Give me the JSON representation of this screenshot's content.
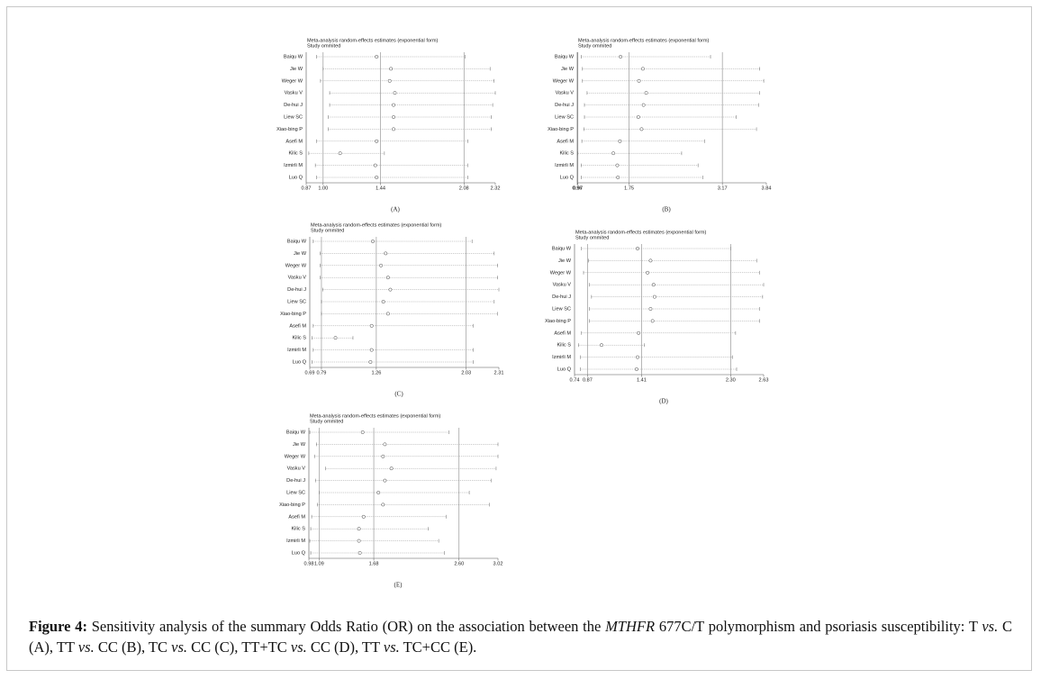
{
  "chart_data": [
    {
      "type": "forest",
      "panel_label": "(A)",
      "title": "Meta-analysis random-effects estimates (exponential form)",
      "subtitle": "Study ommited",
      "categories": [
        "Baiqu W",
        "Jie W",
        "Weger W",
        "Vasku V",
        "De-hui J",
        "Liew SC",
        "Xiao-bing P",
        "Asefi M",
        "Kilic S",
        "Izmirli M",
        "Luo Q"
      ],
      "values": [
        1.41,
        1.52,
        1.51,
        1.55,
        1.54,
        1.54,
        1.54,
        1.41,
        1.13,
        1.4,
        1.41
      ],
      "lower": [
        0.95,
        1.0,
        0.98,
        1.05,
        1.05,
        1.04,
        1.04,
        0.95,
        0.89,
        0.94,
        0.95
      ],
      "upper": [
        2.09,
        2.28,
        2.31,
        2.32,
        2.3,
        2.29,
        2.29,
        2.11,
        1.47,
        2.11,
        2.11
      ],
      "xlim": [
        0.87,
        2.32
      ],
      "xticks": [
        0.87,
        {
          "value": 1,
          "label": "1.00"
        },
        1.44,
        2.08,
        2.32
      ],
      "grid": true
    },
    {
      "type": "forest",
      "panel_label": "(B)",
      "title": "Meta-analysis random-effects estimates (exponential form)",
      "subtitle": "Study ommited",
      "categories": [
        "Baiqu W",
        "Jie W",
        "Weger W",
        "Vasku V",
        "De-hui J",
        "Liew SC",
        "Xiao-bing P",
        "Asefi M",
        "Kilic S",
        "Izmirli M",
        "Luo Q"
      ],
      "values": [
        1.62,
        1.96,
        1.9,
        2.01,
        1.97,
        1.89,
        1.94,
        1.61,
        1.51,
        1.57,
        1.58
      ],
      "lower": [
        1.02,
        1.04,
        1.04,
        1.11,
        1.07,
        1.07,
        1.06,
        1.03,
        0.97,
        1.02,
        1.02
      ],
      "upper": [
        2.99,
        3.74,
        3.8,
        3.74,
        3.72,
        3.38,
        3.69,
        2.9,
        2.55,
        2.8,
        2.87
      ],
      "xlim": [
        0.96,
        3.84
      ],
      "xticks": [
        0.96,
        0.97,
        1.75,
        3.17,
        3.84
      ],
      "grid": true
    },
    {
      "type": "forest",
      "panel_label": "(C)",
      "title": "Meta-analysis random-effects estimates (exponential form)",
      "subtitle": "Study ommited",
      "categories": [
        "Baiqu W",
        "Jie W",
        "Weger W",
        "Vasku V",
        "De-hui J",
        "Liew SC",
        "Xiao-bing P",
        "Asefi M",
        "Kilic S",
        "Izmirli M",
        "Luo Q"
      ],
      "values": [
        1.23,
        1.34,
        1.3,
        1.36,
        1.38,
        1.32,
        1.36,
        1.22,
        0.91,
        1.22,
        1.21
      ],
      "lower": [
        0.72,
        0.78,
        0.78,
        0.78,
        0.8,
        0.79,
        0.79,
        0.72,
        0.71,
        0.72,
        0.71
      ],
      "upper": [
        2.08,
        2.27,
        2.3,
        2.3,
        2.31,
        2.27,
        2.3,
        2.09,
        1.06,
        2.09,
        2.09
      ],
      "xlim": [
        0.69,
        2.31
      ],
      "xticks": [
        0.69,
        0.79,
        1.26,
        2.03,
        2.31
      ],
      "grid": true
    },
    {
      "type": "forest",
      "panel_label": "(D)",
      "title": "Meta-analysis random-effects estimates (exponential form)",
      "subtitle": "Study ommited",
      "categories": [
        "Baiqu W",
        "Jie W",
        "Weger W",
        "Vasku V",
        "De-hui J",
        "Liew SC",
        "Xiao-bing P",
        "Asefi M",
        "Kilic S",
        "Izmirli M",
        "Luo Q"
      ],
      "values": [
        1.37,
        1.5,
        1.47,
        1.53,
        1.54,
        1.5,
        1.52,
        1.38,
        1.01,
        1.37,
        1.36
      ],
      "lower": [
        0.81,
        0.88,
        0.83,
        0.89,
        0.91,
        0.89,
        0.89,
        0.81,
        0.78,
        0.8,
        0.8
      ],
      "upper": [
        2.3,
        2.56,
        2.59,
        2.63,
        2.62,
        2.59,
        2.59,
        2.35,
        1.44,
        2.32,
        2.36
      ],
      "xlim": [
        0.74,
        2.63
      ],
      "xticks": [
        0.74,
        0.87,
        1.41,
        {
          "value": 2.3,
          "label": "2.30"
        },
        2.63
      ],
      "grid": true
    },
    {
      "type": "forest",
      "panel_label": "(E)",
      "title": "Meta-analysis random-effects estimates (exponential form)",
      "subtitle": "Study ommited",
      "categories": [
        "Baiqu W",
        "Jie W",
        "Weger W",
        "Vasku V",
        "De-hui J",
        "Liew SC",
        "Xiao-bing P",
        "Asefi M",
        "Kilic S",
        "Izmirli M",
        "Luo Q"
      ],
      "values": [
        1.56,
        1.8,
        1.78,
        1.87,
        1.8,
        1.73,
        1.78,
        1.57,
        1.52,
        1.52,
        1.53
      ],
      "lower": [
        0.99,
        1.06,
        1.04,
        1.16,
        1.05,
        1.09,
        1.07,
        1.01,
        1.0,
        0.99,
        1.0
      ],
      "upper": [
        2.49,
        3.02,
        3.02,
        3.0,
        2.95,
        2.71,
        2.93,
        2.46,
        2.27,
        2.38,
        2.44
      ],
      "xlim": [
        0.98,
        3.02
      ],
      "xticks": [
        0.98,
        1.09,
        1.68,
        {
          "value": 2.6,
          "label": "2.60"
        },
        3.02
      ],
      "grid": true
    }
  ],
  "caption": {
    "label": "Figure 4:",
    "parts": [
      {
        "text": " Sensitivity analysis of the summary Odds Ratio (OR) on the association between the ",
        "italic": false
      },
      {
        "text": "MTHFR",
        "italic": true
      },
      {
        "text": " 677C/T polymorphism and psoriasis susceptibility: T ",
        "italic": false
      },
      {
        "text": "vs.",
        "italic": true
      },
      {
        "text": " C (A), TT ",
        "italic": false
      },
      {
        "text": "vs.",
        "italic": true
      },
      {
        "text": " CC (B), TC ",
        "italic": false
      },
      {
        "text": "vs.",
        "italic": true
      },
      {
        "text": " CC (C), TT+TC ",
        "italic": false
      },
      {
        "text": "vs.",
        "italic": true
      },
      {
        "text": " CC (D), TT ",
        "italic": false
      },
      {
        "text": "vs.",
        "italic": true
      },
      {
        "text": " TC+CC (E).",
        "italic": false
      }
    ]
  }
}
